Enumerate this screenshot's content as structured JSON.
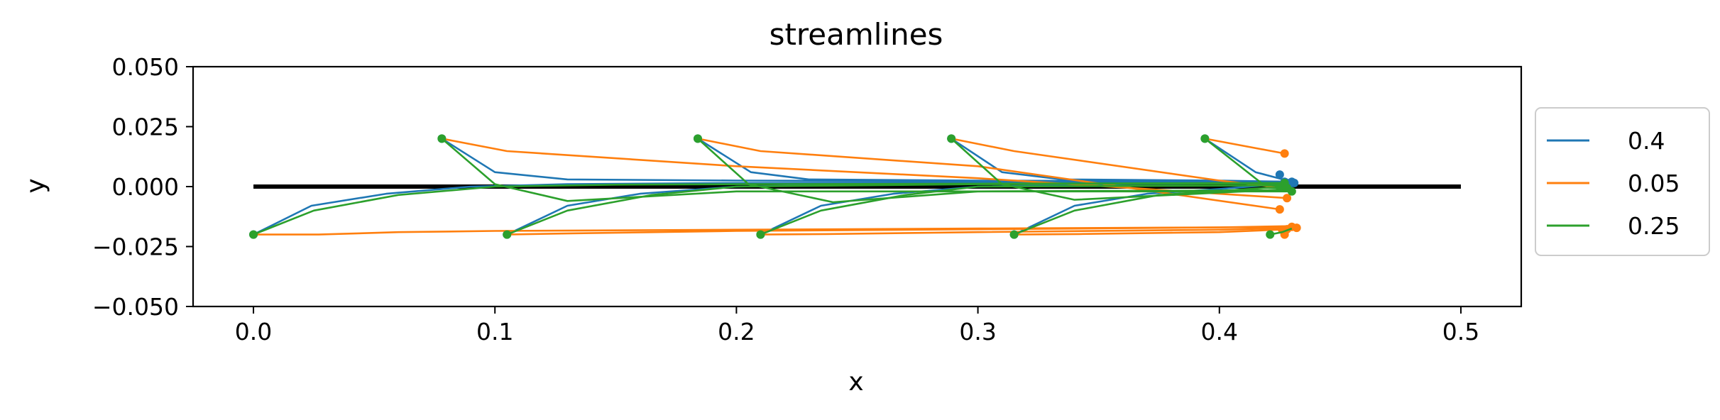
{
  "chart_data": {
    "type": "line",
    "title": "streamlines",
    "xlabel": "x",
    "ylabel": "y",
    "xlim": [
      -0.025,
      0.525
    ],
    "ylim": [
      -0.05,
      0.05
    ],
    "xticks": [
      0.0,
      0.1,
      0.2,
      0.3,
      0.4,
      0.5
    ],
    "xtick_labels": [
      "0.0",
      "0.1",
      "0.2",
      "0.3",
      "0.4",
      "0.5"
    ],
    "yticks": [
      -0.05,
      -0.025,
      0.0,
      0.025,
      0.05
    ],
    "ytick_labels": [
      "−0.050",
      "−0.025",
      "0.000",
      "0.025",
      "0.050"
    ],
    "grid": false,
    "legend_placement": "outside-right",
    "reference_line": {
      "x": [
        0.0,
        0.5
      ],
      "y": [
        0.0,
        0.0
      ],
      "color": "#000000"
    },
    "series": [
      {
        "name": "0.4",
        "color": "#1f77b4",
        "lines": [
          {
            "x": [
              0.0,
              0.024,
              0.055,
              0.09,
              0.13,
              0.2,
              0.3,
              0.4,
              0.425
            ],
            "y": [
              -0.02,
              -0.008,
              -0.003,
              0.0,
              0.001,
              0.0015,
              0.0017,
              0.0018,
              0.002
            ]
          },
          {
            "x": [
              0.105,
              0.13,
              0.16,
              0.2,
              0.27,
              0.35,
              0.425
            ],
            "y": [
              -0.02,
              -0.008,
              -0.003,
              0.0,
              0.0012,
              0.0015,
              0.0017
            ]
          },
          {
            "x": [
              0.21,
              0.235,
              0.265,
              0.3,
              0.36,
              0.425
            ],
            "y": [
              -0.02,
              -0.008,
              -0.003,
              0.0,
              0.001,
              0.0015
            ]
          },
          {
            "x": [
              0.315,
              0.34,
              0.37,
              0.4,
              0.425
            ],
            "y": [
              -0.02,
              -0.008,
              -0.003,
              -0.001,
              0.001
            ]
          },
          {
            "x": [
              0.078,
              0.1,
              0.13,
              0.2,
              0.3,
              0.43
            ],
            "y": [
              0.02,
              0.006,
              0.003,
              0.0025,
              0.0022,
              0.002
            ]
          },
          {
            "x": [
              0.184,
              0.206,
              0.23,
              0.3,
              0.43
            ],
            "y": [
              0.02,
              0.006,
              0.003,
              0.0025,
              0.002
            ]
          },
          {
            "x": [
              0.289,
              0.31,
              0.335,
              0.4,
              0.43
            ],
            "y": [
              0.02,
              0.006,
              0.003,
              0.0025,
              0.002
            ]
          },
          {
            "x": [
              0.394,
              0.415,
              0.43
            ],
            "y": [
              0.02,
              0.006,
              0.002
            ]
          }
        ],
        "markers": {
          "x": [
            0.0,
            0.105,
            0.21,
            0.315,
            0.078,
            0.184,
            0.289,
            0.394,
            0.425,
            0.426,
            0.427,
            0.428,
            0.429,
            0.43,
            0.431,
            0.425
          ],
          "y": [
            -0.02,
            -0.02,
            -0.02,
            -0.02,
            0.02,
            0.02,
            0.02,
            0.02,
            0.005,
            0.0005,
            0.002,
            0.0015,
            0.001,
            0.002,
            0.0015,
            0.0005
          ]
        }
      },
      {
        "name": "0.05",
        "color": "#ff7f0e",
        "lines": [
          {
            "x": [
              0.0,
              0.027,
              0.06,
              0.1,
              0.2,
              0.3,
              0.4,
              0.428
            ],
            "y": [
              -0.02,
              -0.02,
              -0.019,
              -0.0185,
              -0.018,
              -0.0175,
              -0.017,
              -0.0165
            ]
          },
          {
            "x": [
              0.105,
              0.132,
              0.2,
              0.3,
              0.4,
              0.43
            ],
            "y": [
              -0.02,
              -0.0195,
              -0.0185,
              -0.0178,
              -0.017,
              -0.0168
            ]
          },
          {
            "x": [
              0.21,
              0.237,
              0.3,
              0.4,
              0.432
            ],
            "y": [
              -0.02,
              -0.0198,
              -0.019,
              -0.018,
              -0.0172
            ]
          },
          {
            "x": [
              0.315,
              0.342,
              0.4,
              0.433
            ],
            "y": [
              -0.02,
              -0.0198,
              -0.019,
              -0.0176
            ]
          },
          {
            "x": [
              0.078,
              0.105,
              0.2,
              0.3,
              0.428
            ],
            "y": [
              0.02,
              0.0148,
              0.0085,
              0.0035,
              -0.0048
            ]
          },
          {
            "x": [
              0.184,
              0.21,
              0.3,
              0.425
            ],
            "y": [
              0.02,
              0.0148,
              0.0085,
              -0.0095
            ]
          },
          {
            "x": [
              0.289,
              0.315,
              0.4,
              0.426
            ],
            "y": [
              0.02,
              0.0148,
              0.0025,
              -0.0005
            ]
          },
          {
            "x": [
              0.394,
              0.427
            ],
            "y": [
              0.02,
              0.0138
            ]
          }
        ],
        "markers": {
          "x": [
            0.427,
            0.428,
            0.425,
            0.426,
            0.43,
            0.432,
            0.428,
            0.427,
            0.426
          ],
          "y": [
            0.0138,
            -0.0048,
            -0.0095,
            -0.0005,
            -0.0168,
            -0.0172,
            -0.0178,
            -0.02,
            -0.018
          ]
        }
      },
      {
        "name": "0.25",
        "color": "#2ca02c",
        "lines": [
          {
            "x": [
              0.0,
              0.025,
              0.06,
              0.1,
              0.15,
              0.2,
              0.3,
              0.427
            ],
            "y": [
              -0.02,
              -0.01,
              -0.0035,
              0.0,
              0.0008,
              0.001,
              0.0012,
              0.0015
            ]
          },
          {
            "x": [
              0.105,
              0.13,
              0.165,
              0.2,
              0.3,
              0.427
            ],
            "y": [
              -0.02,
              -0.01,
              -0.0035,
              0.0,
              0.001,
              0.0013
            ]
          },
          {
            "x": [
              0.21,
              0.235,
              0.27,
              0.3,
              0.428
            ],
            "y": [
              -0.02,
              -0.01,
              -0.0035,
              0.0,
              0.0005
            ]
          },
          {
            "x": [
              0.315,
              0.34,
              0.375,
              0.42,
              0.428
            ],
            "y": [
              -0.02,
              -0.01,
              -0.0035,
              -0.0005,
              -0.0005
            ]
          },
          {
            "x": [
              0.078,
              0.1,
              0.13,
              0.2,
              0.43
            ],
            "y": [
              0.02,
              0.001,
              -0.006,
              -0.002,
              -0.002
            ]
          },
          {
            "x": [
              0.184,
              0.205,
              0.24,
              0.3,
              0.43
            ],
            "y": [
              0.02,
              0.001,
              -0.0065,
              -0.002,
              -0.0015
            ]
          },
          {
            "x": [
              0.289,
              0.31,
              0.34,
              0.43
            ],
            "y": [
              0.02,
              0.001,
              -0.0055,
              -0.001
            ]
          },
          {
            "x": [
              0.394,
              0.418,
              0.425
            ],
            "y": [
              0.02,
              0.001,
              0.0
            ]
          },
          {
            "x": [
              0.421,
              0.426,
              0.43
            ],
            "y": [
              -0.02,
              -0.019,
              -0.0175
            ]
          }
        ],
        "markers": {
          "x": [
            0.0,
            0.105,
            0.21,
            0.315,
            0.078,
            0.184,
            0.289,
            0.394,
            0.421,
            0.425,
            0.427,
            0.428,
            0.43
          ],
          "y": [
            -0.02,
            -0.02,
            -0.02,
            -0.02,
            0.02,
            0.02,
            0.02,
            0.02,
            -0.02,
            0.0,
            0.0015,
            -0.0005,
            -0.002
          ]
        }
      }
    ]
  }
}
